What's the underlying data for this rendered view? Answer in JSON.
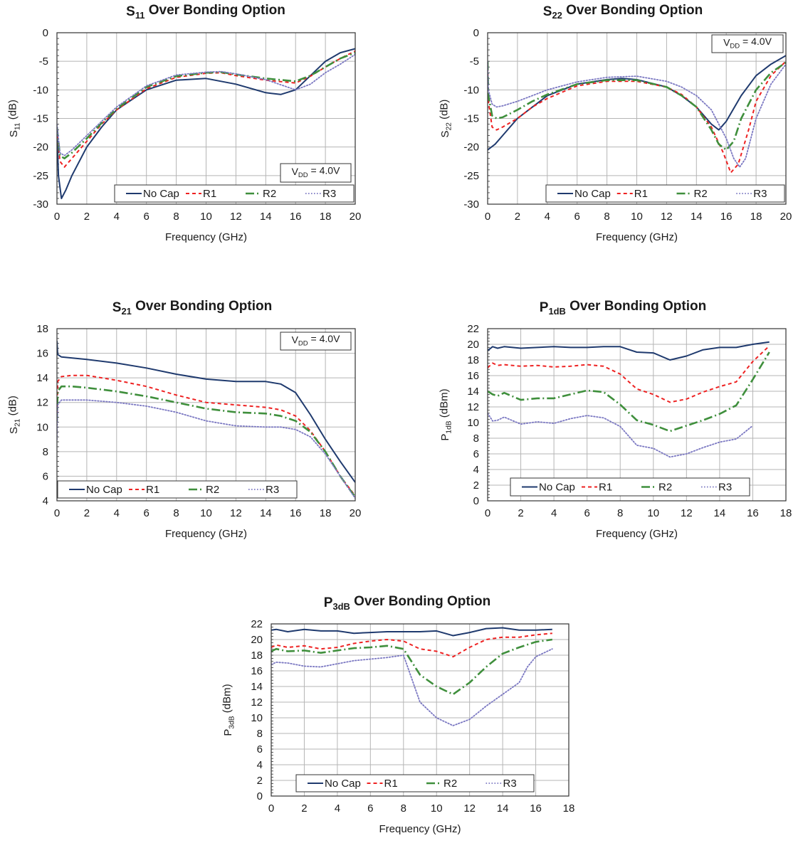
{
  "colors": {
    "No Cap": "#1f3a6e",
    "R1": "#ee2222",
    "R2": "#3f8f3c",
    "R3": "#7b78c2",
    "grid": "#b5b5b5",
    "frame": "#333333"
  },
  "chart_data": [
    {
      "type": "line",
      "title": "S11 Over Bonding Option",
      "title_parts": {
        "main": "S",
        "sub": "11",
        "rest": " Over Bonding Option"
      },
      "xlabel": "Frequency (GHz)",
      "ylabel": "S11 (dB)",
      "ylabel_parts": {
        "main": "S",
        "sub": "11",
        "rest": " (dB)"
      },
      "xlim": [
        0,
        20
      ],
      "ylim": [
        -30,
        0
      ],
      "xticks": [
        0,
        2,
        4,
        6,
        8,
        10,
        12,
        14,
        16,
        18,
        20
      ],
      "yticks": [
        -30,
        -25,
        -20,
        -15,
        -10,
        -5,
        0
      ],
      "grid": true,
      "legend": "bottom-right",
      "annotation": {
        "main": "V",
        "sub": "DD",
        "rest": " = 4.0V",
        "position": "bottom-right"
      },
      "series": [
        {
          "name": "No Cap",
          "x": [
            0,
            0.1,
            0.3,
            0.6,
            1,
            2,
            3,
            4,
            6,
            8,
            10,
            12,
            14,
            15,
            16,
            17,
            18,
            19,
            20
          ],
          "values": [
            -17,
            -25,
            -29,
            -27.5,
            -25,
            -20,
            -16.5,
            -13.5,
            -10,
            -8.3,
            -8,
            -9,
            -10.5,
            -10.8,
            -10,
            -7.5,
            -5,
            -3.5,
            -2.8
          ]
        },
        {
          "name": "R1",
          "x": [
            0,
            0.2,
            0.5,
            1,
            2,
            3,
            4,
            6,
            8,
            10,
            11,
            12,
            14,
            16,
            17,
            18,
            19,
            20
          ],
          "values": [
            -17,
            -22.5,
            -23.5,
            -22,
            -19,
            -16,
            -13.5,
            -9.8,
            -7.8,
            -7.1,
            -7,
            -7.5,
            -8.3,
            -8.8,
            -7.6,
            -6,
            -4.5,
            -3.2
          ]
        },
        {
          "name": "R2",
          "x": [
            0,
            0.2,
            0.5,
            1,
            2,
            3,
            4,
            6,
            8,
            10,
            11,
            12,
            14,
            16,
            17,
            18,
            19,
            20
          ],
          "values": [
            -16.5,
            -21.5,
            -22,
            -21,
            -18.5,
            -15.8,
            -13.3,
            -9.5,
            -7.6,
            -7,
            -6.9,
            -7.3,
            -8,
            -8.5,
            -7.5,
            -6,
            -4.5,
            -3.5
          ]
        },
        {
          "name": "R3",
          "x": [
            0,
            0.2,
            0.5,
            1,
            2,
            3,
            4,
            6,
            8,
            10,
            11,
            12,
            14,
            16,
            17,
            18,
            19,
            20
          ],
          "values": [
            -16,
            -21,
            -21.5,
            -20.5,
            -18,
            -15.5,
            -13,
            -9.3,
            -7.4,
            -6.9,
            -6.8,
            -7.2,
            -8.2,
            -10,
            -9,
            -7,
            -5.5,
            -3.8
          ]
        }
      ]
    },
    {
      "type": "line",
      "title": "S22 Over Bonding Option",
      "title_parts": {
        "main": "S",
        "sub": "22",
        "rest": " Over Bonding Option"
      },
      "xlabel": "Frequency (GHz)",
      "ylabel": "S22 (dB)",
      "ylabel_parts": {
        "main": "S",
        "sub": "22",
        "rest": " (dB)"
      },
      "xlim": [
        0,
        20
      ],
      "ylim": [
        -30,
        0
      ],
      "xticks": [
        0,
        2,
        4,
        6,
        8,
        10,
        12,
        14,
        16,
        18,
        20
      ],
      "yticks": [
        -30,
        -25,
        -20,
        -15,
        -10,
        -5,
        0
      ],
      "grid": true,
      "legend": "bottom-right",
      "annotation": {
        "main": "V",
        "sub": "DD",
        "rest": " = 4.0V",
        "position": "top-right"
      },
      "series": [
        {
          "name": "No Cap",
          "x": [
            0,
            0.5,
            1,
            2,
            3,
            4,
            6,
            8,
            9,
            10,
            12,
            13,
            14,
            15,
            15.5,
            16,
            17,
            18,
            19,
            20
          ],
          "values": [
            -20.5,
            -19.5,
            -18,
            -15,
            -13,
            -11,
            -9,
            -8.2,
            -8,
            -8.2,
            -9.5,
            -11,
            -13,
            -16,
            -17,
            -15.5,
            -11,
            -7.5,
            -5.5,
            -4
          ]
        },
        {
          "name": "R1",
          "x": [
            0,
            0.05,
            0.3,
            0.6,
            1,
            2,
            3,
            4,
            6,
            8,
            10,
            12,
            13,
            14,
            15,
            15.8,
            16.3,
            16.8,
            17.5,
            18,
            19,
            20
          ],
          "values": [
            -5,
            -12,
            -16.5,
            -17,
            -16.5,
            -15,
            -13,
            -11.5,
            -9.3,
            -8.5,
            -8.5,
            -9.5,
            -10.8,
            -13,
            -16.5,
            -21,
            -24.5,
            -23,
            -17,
            -12,
            -7.5,
            -5
          ]
        },
        {
          "name": "R2",
          "x": [
            0,
            0.05,
            0.3,
            0.6,
            1,
            2,
            3,
            4,
            6,
            8,
            10,
            12,
            13,
            14,
            15,
            15.5,
            16,
            16.5,
            17,
            18,
            19,
            20
          ],
          "values": [
            -5,
            -11,
            -14.5,
            -15,
            -14.8,
            -13.5,
            -12,
            -10.8,
            -9,
            -8.3,
            -8.3,
            -9.5,
            -11,
            -13,
            -17,
            -19.5,
            -20.5,
            -19,
            -15,
            -10,
            -7,
            -5.2
          ]
        },
        {
          "name": "R3",
          "x": [
            0,
            0.05,
            0.3,
            0.6,
            1,
            2,
            3,
            4,
            6,
            8,
            10,
            12,
            13,
            14,
            15,
            16,
            16.5,
            16.9,
            17.3,
            18,
            19,
            20
          ],
          "values": [
            -5,
            -10,
            -12.5,
            -13,
            -12.8,
            -12,
            -11,
            -10,
            -8.6,
            -7.8,
            -7.6,
            -8.5,
            -9.5,
            -11,
            -13.5,
            -18.5,
            -22,
            -23.5,
            -22,
            -15,
            -9,
            -5.5
          ]
        }
      ]
    },
    {
      "type": "line",
      "title": "S21 Over Bonding Option",
      "title_parts": {
        "main": "S",
        "sub": "21",
        "rest": " Over Bonding Option"
      },
      "xlabel": "Frequency (GHz)",
      "ylabel": "S21 (dB)",
      "ylabel_parts": {
        "main": "S",
        "sub": "21",
        "rest": " (dB)"
      },
      "xlim": [
        0,
        20
      ],
      "ylim": [
        4,
        18
      ],
      "xticks": [
        0,
        2,
        4,
        6,
        8,
        10,
        12,
        14,
        16,
        18,
        20
      ],
      "yticks": [
        4,
        6,
        8,
        10,
        12,
        14,
        16,
        18
      ],
      "grid": true,
      "legend": "bottom-left",
      "annotation": {
        "main": "V",
        "sub": "DD",
        "rest": " = 4.0V",
        "position": "top-right"
      },
      "series": [
        {
          "name": "No Cap",
          "x": [
            0,
            0.05,
            0.3,
            2,
            4,
            6,
            8,
            10,
            12,
            14,
            15,
            16,
            17,
            18,
            19,
            20
          ],
          "values": [
            17,
            15.9,
            15.7,
            15.5,
            15.2,
            14.8,
            14.3,
            13.9,
            13.7,
            13.7,
            13.5,
            12.8,
            11,
            9,
            7.2,
            5.5
          ]
        },
        {
          "name": "R1",
          "x": [
            0,
            0.05,
            0.3,
            1,
            2,
            4,
            6,
            8,
            10,
            12,
            14,
            15,
            16,
            17,
            18,
            19,
            20
          ],
          "values": [
            10.5,
            13.7,
            14.1,
            14.2,
            14.2,
            13.8,
            13.3,
            12.6,
            12,
            11.8,
            11.6,
            11.4,
            10.9,
            9.7,
            8,
            6,
            4.4
          ]
        },
        {
          "name": "R2",
          "x": [
            0,
            0.05,
            0.3,
            1,
            2,
            4,
            6,
            8,
            10,
            12,
            14,
            15,
            16,
            17,
            18,
            19,
            20
          ],
          "values": [
            10.5,
            12.9,
            13.3,
            13.3,
            13.2,
            12.9,
            12.5,
            12,
            11.5,
            11.2,
            11.1,
            10.9,
            10.5,
            9.6,
            8,
            6,
            4.3
          ]
        },
        {
          "name": "R3",
          "x": [
            0,
            0.05,
            0.3,
            1,
            2,
            4,
            6,
            8,
            10,
            12,
            14,
            15,
            16,
            17,
            18,
            19,
            20
          ],
          "values": [
            9,
            11.8,
            12.2,
            12.2,
            12.2,
            12,
            11.7,
            11.2,
            10.5,
            10.1,
            10,
            10,
            9.8,
            9.2,
            7.8,
            6,
            4.2
          ]
        }
      ]
    },
    {
      "type": "line",
      "title": "P1dB Over Bonding Option",
      "title_parts": {
        "main": "P",
        "sub": "1dB",
        "rest": " Over Bonding Option"
      },
      "xlabel": "Frequency (GHz)",
      "ylabel": "P1dB (dBm)",
      "ylabel_parts": {
        "main": "P",
        "sub": "1dB",
        "rest": " (dBm)"
      },
      "xlim": [
        0,
        18
      ],
      "ylim": [
        0,
        22
      ],
      "xticks": [
        0,
        2,
        4,
        6,
        8,
        10,
        12,
        14,
        16,
        18
      ],
      "yticks": [
        0,
        2,
        4,
        6,
        8,
        10,
        12,
        14,
        16,
        18,
        20,
        22
      ],
      "grid": true,
      "legend": "bottom-right",
      "series": [
        {
          "name": "No Cap",
          "x": [
            0,
            0.3,
            0.6,
            1,
            2,
            3,
            4,
            5,
            6,
            7,
            8,
            9,
            10,
            11,
            12,
            13,
            14,
            15,
            16,
            17
          ],
          "values": [
            19.2,
            19.7,
            19.5,
            19.7,
            19.5,
            19.6,
            19.7,
            19.6,
            19.6,
            19.7,
            19.7,
            19,
            18.9,
            18,
            18.5,
            19.3,
            19.6,
            19.6,
            20,
            20.3
          ]
        },
        {
          "name": "R1",
          "x": [
            0,
            0.3,
            0.6,
            1,
            2,
            3,
            4,
            5,
            6,
            7,
            8,
            9,
            10,
            11,
            12,
            13,
            14,
            15,
            16,
            17
          ],
          "values": [
            17,
            17.6,
            17.3,
            17.4,
            17.2,
            17.3,
            17.1,
            17.2,
            17.4,
            17.2,
            16.2,
            14.3,
            13.6,
            12.6,
            13,
            13.9,
            14.6,
            15.2,
            17.8,
            19.8
          ]
        },
        {
          "name": "R2",
          "x": [
            0,
            0.3,
            0.6,
            1,
            2,
            3,
            4,
            5,
            6,
            7,
            8,
            9,
            10,
            11,
            12,
            13,
            14,
            15,
            16,
            17
          ],
          "values": [
            14,
            13.6,
            13.4,
            13.8,
            12.9,
            13.1,
            13.1,
            13.6,
            14.1,
            13.9,
            12.3,
            10.3,
            9.7,
            8.9,
            9.6,
            10.3,
            11.1,
            12.2,
            15.5,
            19
          ]
        },
        {
          "name": "R3",
          "x": [
            0,
            0.3,
            0.6,
            1,
            2,
            3,
            4,
            5,
            6,
            7,
            8,
            9,
            10,
            11,
            12,
            13,
            14,
            15,
            16
          ],
          "values": [
            11.2,
            10.2,
            10.3,
            10.7,
            9.8,
            10.1,
            9.9,
            10.5,
            10.9,
            10.6,
            9.5,
            7.1,
            6.7,
            5.6,
            6,
            6.8,
            7.5,
            7.9,
            9.6
          ]
        }
      ]
    },
    {
      "type": "line",
      "title": "P3dB Over Bonding Option",
      "title_parts": {
        "main": "P",
        "sub": "3dB",
        "rest": " Over Bonding Option"
      },
      "xlabel": "Frequency (GHz)",
      "ylabel": "P3dB (dBm)",
      "ylabel_parts": {
        "main": "P",
        "sub": "3dB",
        "rest": " (dBm)"
      },
      "xlim": [
        0,
        18
      ],
      "ylim": [
        0,
        22
      ],
      "xticks": [
        0,
        2,
        4,
        6,
        8,
        10,
        12,
        14,
        16,
        18
      ],
      "yticks": [
        0,
        2,
        4,
        6,
        8,
        10,
        12,
        14,
        16,
        18,
        20,
        22
      ],
      "grid": true,
      "legend": "bottom-left",
      "series": [
        {
          "name": "No Cap",
          "x": [
            0,
            0.3,
            1,
            2,
            3,
            4,
            5,
            6,
            7,
            8,
            9,
            10,
            11,
            12,
            13,
            14,
            15,
            16,
            17
          ],
          "values": [
            21.2,
            21.3,
            21,
            21.3,
            21.1,
            21.1,
            20.8,
            20.9,
            21,
            21,
            21,
            21.1,
            20.5,
            20.9,
            21.4,
            21.5,
            21.2,
            21.2,
            21.3
          ]
        },
        {
          "name": "R1",
          "x": [
            0,
            0.3,
            1,
            2,
            3,
            4,
            5,
            6,
            7,
            8,
            9,
            10,
            11,
            12,
            13,
            14,
            15,
            16,
            17
          ],
          "values": [
            19,
            19.3,
            19,
            19.2,
            18.8,
            19,
            19.5,
            19.8,
            20,
            19.8,
            18.8,
            18.5,
            17.8,
            19,
            20,
            20.3,
            20.3,
            20.6,
            20.8
          ]
        },
        {
          "name": "R2",
          "x": [
            0,
            0.3,
            1,
            2,
            3,
            4,
            5,
            6,
            7,
            8,
            9,
            10,
            11,
            12,
            13,
            14,
            15,
            16,
            17
          ],
          "values": [
            18.5,
            18.8,
            18.5,
            18.6,
            18.3,
            18.6,
            18.9,
            19,
            19.2,
            18.8,
            15.5,
            14,
            13,
            14.5,
            16.5,
            18.2,
            19,
            19.7,
            20
          ]
        },
        {
          "name": "R3",
          "x": [
            0,
            0.3,
            1,
            2,
            3,
            4,
            5,
            6,
            7,
            8,
            8.5,
            9,
            10,
            11,
            12,
            13,
            14,
            15,
            15.5,
            16,
            17
          ],
          "values": [
            16.8,
            17.1,
            17,
            16.6,
            16.5,
            16.9,
            17.3,
            17.5,
            17.7,
            18,
            15,
            12,
            10,
            9,
            9.8,
            11.5,
            13,
            14.5,
            16.5,
            17.8,
            18.8
          ]
        }
      ]
    }
  ]
}
